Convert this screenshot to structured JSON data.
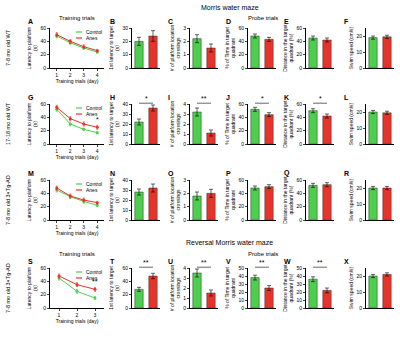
{
  "figure": {
    "headers": [
      {
        "title": "Morris water maze",
        "columns": [
          "Training trials",
          "Probe trials"
        ]
      },
      {
        "title": "Reversal Morris water maze",
        "columns": [
          "Training trials",
          "Probe trials"
        ]
      }
    ],
    "row_labels": [
      "7-8 mo old WT",
      "17-18 mo old WT",
      "7-8 mo old 3×Tg-AD",
      "7-8 mo old 3×Tg-AD"
    ]
  },
  "chart_data": [
    {
      "panel": "A",
      "type": "line",
      "xlabel": "Training trials (day)",
      "ylabel": "Latency to platform (s)",
      "x": [
        1,
        2,
        3,
        4
      ],
      "xlim": [
        0.5,
        4.5
      ],
      "xticks": [
        1,
        2,
        3,
        4
      ],
      "ylim": [
        0,
        60
      ],
      "yticks": [
        0,
        20,
        40,
        60
      ],
      "legend": "upper right",
      "series": [
        {
          "name": "Control",
          "color": "#4ccf4c",
          "values": [
            48,
            38,
            30,
            24
          ],
          "errors": [
            3,
            3,
            2,
            2
          ]
        },
        {
          "name": "Anes",
          "color": "#e8332a",
          "values": [
            50,
            40,
            32,
            26
          ],
          "errors": [
            3,
            3,
            3,
            2
          ]
        }
      ]
    },
    {
      "panel": "B",
      "type": "bar",
      "ylabel": "1st latency to target (s)",
      "categories": [
        "Control",
        "Anes"
      ],
      "values": [
        20,
        24
      ],
      "errors": [
        3,
        4
      ],
      "colors": [
        "#4ccf4c",
        "#e8332a"
      ],
      "ylim": [
        0,
        30
      ],
      "yticks": [
        0,
        10,
        20,
        30
      ],
      "tick_labels": "y"
    },
    {
      "panel": "C",
      "type": "bar",
      "ylabel": "# of platform location crossings",
      "categories": [
        "Control",
        "Anes"
      ],
      "values": [
        2.2,
        1.5
      ],
      "errors": [
        0.3,
        0.3
      ],
      "colors": [
        "#4ccf4c",
        "#e8332a"
      ],
      "ylim": [
        0,
        3
      ],
      "yticks": [
        0,
        1,
        2,
        3
      ],
      "tick_labels": "y"
    },
    {
      "panel": "D",
      "type": "bar",
      "ylabel": "% of Time in target quadrant",
      "categories": [
        "Control",
        "Anes"
      ],
      "values": [
        48,
        43
      ],
      "errors": [
        3,
        3
      ],
      "colors": [
        "#4ccf4c",
        "#e8332a"
      ],
      "ylim": [
        0,
        60
      ],
      "yticks": [
        0,
        20,
        40,
        60
      ],
      "tick_labels": "y"
    },
    {
      "panel": "E",
      "type": "bar",
      "ylabel": "Distance in the target quadrant (%)",
      "categories": [
        "Control",
        "Anes"
      ],
      "values": [
        45,
        42
      ],
      "errors": [
        3,
        3
      ],
      "colors": [
        "#4ccf4c",
        "#e8332a"
      ],
      "ylim": [
        0,
        60
      ],
      "yticks": [
        0,
        20,
        40,
        60
      ],
      "tick_labels": "y"
    },
    {
      "panel": "F",
      "type": "bar",
      "ylabel": "Swim speed (cm/s)",
      "categories": [
        "Control",
        "Anes"
      ],
      "values": [
        19,
        19.5
      ],
      "errors": [
        1,
        1
      ],
      "colors": [
        "#4ccf4c",
        "#e8332a"
      ],
      "ylim": [
        0,
        25
      ],
      "yticks": [
        0,
        10,
        20
      ],
      "tick_labels": "y"
    },
    {
      "panel": "G",
      "type": "line",
      "xlabel": "Training trials (day)",
      "ylabel": "Latency to platform (s)",
      "x": [
        1,
        2,
        3,
        4
      ],
      "xlim": [
        0.5,
        4.5
      ],
      "xticks": [
        1,
        2,
        3,
        4
      ],
      "ylim": [
        0,
        60
      ],
      "yticks": [
        0,
        20,
        40,
        60
      ],
      "legend": "upper right",
      "series": [
        {
          "name": "Control",
          "color": "#4ccf4c",
          "values": [
            52,
            30,
            22,
            17
          ],
          "errors": [
            3,
            3,
            2,
            2
          ]
        },
        {
          "name": "Anes",
          "color": "#e8332a",
          "values": [
            55,
            38,
            30,
            25
          ],
          "errors": [
            3,
            3,
            3,
            3
          ]
        }
      ],
      "annotations": [
        {
          "text": "*",
          "x": 4
        }
      ]
    },
    {
      "panel": "H",
      "type": "bar",
      "ylabel": "1st latency to target (s)",
      "categories": [
        "Control",
        "Anes"
      ],
      "values": [
        22,
        36
      ],
      "errors": [
        3,
        3
      ],
      "colors": [
        "#4ccf4c",
        "#e8332a"
      ],
      "ylim": [
        0,
        40
      ],
      "yticks": [
        0,
        10,
        20,
        30,
        40
      ],
      "tick_labels": "y",
      "annotations": [
        {
          "text": "*"
        }
      ]
    },
    {
      "panel": "I",
      "type": "bar",
      "ylabel": "# of platform location crossings",
      "categories": [
        "Control",
        "Anes"
      ],
      "values": [
        3.2,
        1.1
      ],
      "errors": [
        0.4,
        0.3
      ],
      "colors": [
        "#4ccf4c",
        "#e8332a"
      ],
      "ylim": [
        0,
        4
      ],
      "yticks": [
        0,
        1,
        2,
        3,
        4
      ],
      "tick_labels": "y",
      "annotations": [
        {
          "text": "**"
        }
      ]
    },
    {
      "panel": "J",
      "type": "bar",
      "ylabel": "% of Time in target quadrant",
      "categories": [
        "Control",
        "Anes"
      ],
      "values": [
        52,
        44
      ],
      "errors": [
        3,
        3
      ],
      "colors": [
        "#4ccf4c",
        "#e8332a"
      ],
      "ylim": [
        0,
        60
      ],
      "yticks": [
        0,
        20,
        40,
        60
      ],
      "tick_labels": "y",
      "annotations": [
        {
          "text": "*"
        }
      ]
    },
    {
      "panel": "K",
      "type": "bar",
      "ylabel": "Distance in the target quadrant (%)",
      "categories": [
        "Control",
        "Anes"
      ],
      "values": [
        50,
        42
      ],
      "errors": [
        3,
        3
      ],
      "colors": [
        "#4ccf4c",
        "#e8332a"
      ],
      "ylim": [
        0,
        60
      ],
      "yticks": [
        0,
        20,
        40,
        60
      ],
      "tick_labels": "y",
      "annotations": [
        {
          "text": "*"
        }
      ]
    },
    {
      "panel": "L",
      "type": "bar",
      "ylabel": "Swim speed (cm/s)",
      "categories": [
        "Control",
        "Anes"
      ],
      "values": [
        20,
        19.5
      ],
      "errors": [
        1,
        1
      ],
      "colors": [
        "#4ccf4c",
        "#e8332a"
      ],
      "ylim": [
        0,
        25
      ],
      "yticks": [
        0,
        10,
        20
      ],
      "tick_labels": "y"
    },
    {
      "panel": "M",
      "type": "line",
      "xlabel": "Training trials (day)",
      "ylabel": "Latency to platform (s)",
      "x": [
        1,
        2,
        3,
        4
      ],
      "xlim": [
        0.5,
        4.5
      ],
      "xticks": [
        1,
        2,
        3,
        4
      ],
      "ylim": [
        0,
        60
      ],
      "yticks": [
        0,
        20,
        40,
        60
      ],
      "legend": "upper right",
      "series": [
        {
          "name": "Control",
          "color": "#4ccf4c",
          "values": [
            45,
            35,
            28,
            22
          ],
          "errors": [
            3,
            3,
            3,
            2
          ]
        },
        {
          "name": "Anes",
          "color": "#e8332a",
          "values": [
            48,
            36,
            30,
            26
          ],
          "errors": [
            3,
            3,
            3,
            2
          ]
        }
      ]
    },
    {
      "panel": "N",
      "type": "bar",
      "ylabel": "1st latency to target (s)",
      "categories": [
        "Control",
        "Anes"
      ],
      "values": [
        28,
        32
      ],
      "errors": [
        3,
        4
      ],
      "colors": [
        "#4ccf4c",
        "#e8332a"
      ],
      "ylim": [
        0,
        40
      ],
      "yticks": [
        0,
        10,
        20,
        30,
        40
      ],
      "tick_labels": "y"
    },
    {
      "panel": "O",
      "type": "bar",
      "ylabel": "# of platform location crossings",
      "categories": [
        "Control",
        "Anes"
      ],
      "values": [
        1.8,
        2.0
      ],
      "errors": [
        0.3,
        0.3
      ],
      "colors": [
        "#4ccf4c",
        "#e8332a"
      ],
      "ylim": [
        0,
        3
      ],
      "yticks": [
        0,
        1,
        2,
        3
      ],
      "tick_labels": "y"
    },
    {
      "panel": "P",
      "type": "bar",
      "ylabel": "% of Time in target quadrant",
      "categories": [
        "Control",
        "Anes"
      ],
      "values": [
        48,
        50
      ],
      "errors": [
        3,
        3
      ],
      "colors": [
        "#4ccf4c",
        "#e8332a"
      ],
      "ylim": [
        0,
        60
      ],
      "yticks": [
        0,
        20,
        40,
        60
      ],
      "tick_labels": "y"
    },
    {
      "panel": "Q",
      "type": "bar",
      "ylabel": "Distance in the target quadrant (%)",
      "categories": [
        "Control",
        "Anes"
      ],
      "values": [
        52,
        53
      ],
      "errors": [
        3,
        3
      ],
      "colors": [
        "#4ccf4c",
        "#e8332a"
      ],
      "ylim": [
        0,
        60
      ],
      "yticks": [
        0,
        20,
        40,
        60
      ],
      "tick_labels": "y"
    },
    {
      "panel": "R",
      "type": "bar",
      "ylabel": "Swim speed (cm/s)",
      "categories": [
        "Control",
        "Anes"
      ],
      "values": [
        20,
        20
      ],
      "errors": [
        1,
        1
      ],
      "colors": [
        "#4ccf4c",
        "#e8332a"
      ],
      "ylim": [
        0,
        25
      ],
      "yticks": [
        0,
        10,
        20
      ],
      "tick_labels": "y"
    },
    {
      "panel": "S",
      "type": "line",
      "xlabel": "Training trials (day)",
      "ylabel": "Latency to platform (s)",
      "x": [
        1,
        2,
        3
      ],
      "xlim": [
        0.5,
        3.5
      ],
      "xticks": [
        1,
        2,
        3
      ],
      "ylim": [
        0,
        60
      ],
      "yticks": [
        0,
        20,
        40,
        60
      ],
      "legend": "upper right",
      "series": [
        {
          "name": "Control",
          "color": "#4ccf4c",
          "values": [
            45,
            25,
            15
          ],
          "errors": [
            3,
            3,
            2
          ]
        },
        {
          "name": "Anes",
          "color": "#e8332a",
          "values": [
            48,
            35,
            28
          ],
          "errors": [
            3,
            3,
            3
          ]
        }
      ],
      "annotations": [
        {
          "text": "**",
          "x": 3
        }
      ]
    },
    {
      "panel": "T",
      "type": "bar",
      "ylabel": "1st latency to target (s)",
      "categories": [
        "Control",
        "Anes"
      ],
      "values": [
        28,
        48
      ],
      "errors": [
        3,
        4
      ],
      "colors": [
        "#4ccf4c",
        "#e8332a"
      ],
      "ylim": [
        0,
        60
      ],
      "yticks": [
        0,
        20,
        40,
        60
      ],
      "tick_labels": "y",
      "annotations": [
        {
          "text": "**"
        }
      ]
    },
    {
      "panel": "U",
      "type": "bar",
      "ylabel": "# of platform location crossings",
      "categories": [
        "Control",
        "Anes"
      ],
      "values": [
        3.5,
        1.5
      ],
      "errors": [
        0.4,
        0.3
      ],
      "colors": [
        "#4ccf4c",
        "#e8332a"
      ],
      "ylim": [
        0,
        4
      ],
      "yticks": [
        0,
        1,
        2,
        3,
        4
      ],
      "tick_labels": "y",
      "annotations": [
        {
          "text": "**"
        }
      ]
    },
    {
      "panel": "V",
      "type": "bar",
      "ylabel": "% of Time in target quadrant",
      "categories": [
        "Control",
        "Anes"
      ],
      "values": [
        38,
        25
      ],
      "errors": [
        3,
        3
      ],
      "colors": [
        "#4ccf4c",
        "#e8332a"
      ],
      "ylim": [
        0,
        50
      ],
      "yticks": [
        0,
        10,
        20,
        30,
        40,
        50
      ],
      "tick_labels": "y",
      "annotations": [
        {
          "text": "**"
        }
      ]
    },
    {
      "panel": "W",
      "type": "bar",
      "ylabel": "Distance in the target quadrant (%)",
      "categories": [
        "Control",
        "Anes"
      ],
      "values": [
        36,
        22
      ],
      "errors": [
        3,
        3
      ],
      "colors": [
        "#4ccf4c",
        "#e8332a"
      ],
      "ylim": [
        0,
        50
      ],
      "yticks": [
        0,
        10,
        20,
        30,
        40,
        50
      ],
      "tick_labels": "y",
      "annotations": [
        {
          "text": "**"
        }
      ]
    },
    {
      "panel": "X",
      "type": "bar",
      "ylabel": "Swim speed (cm/s)",
      "categories": [
        "Control",
        "Anes"
      ],
      "values": [
        20,
        21
      ],
      "errors": [
        1,
        1
      ],
      "colors": [
        "#4ccf4c",
        "#e8332a"
      ],
      "ylim": [
        0,
        25
      ],
      "yticks": [
        0,
        10,
        20
      ],
      "tick_labels": "y"
    }
  ]
}
